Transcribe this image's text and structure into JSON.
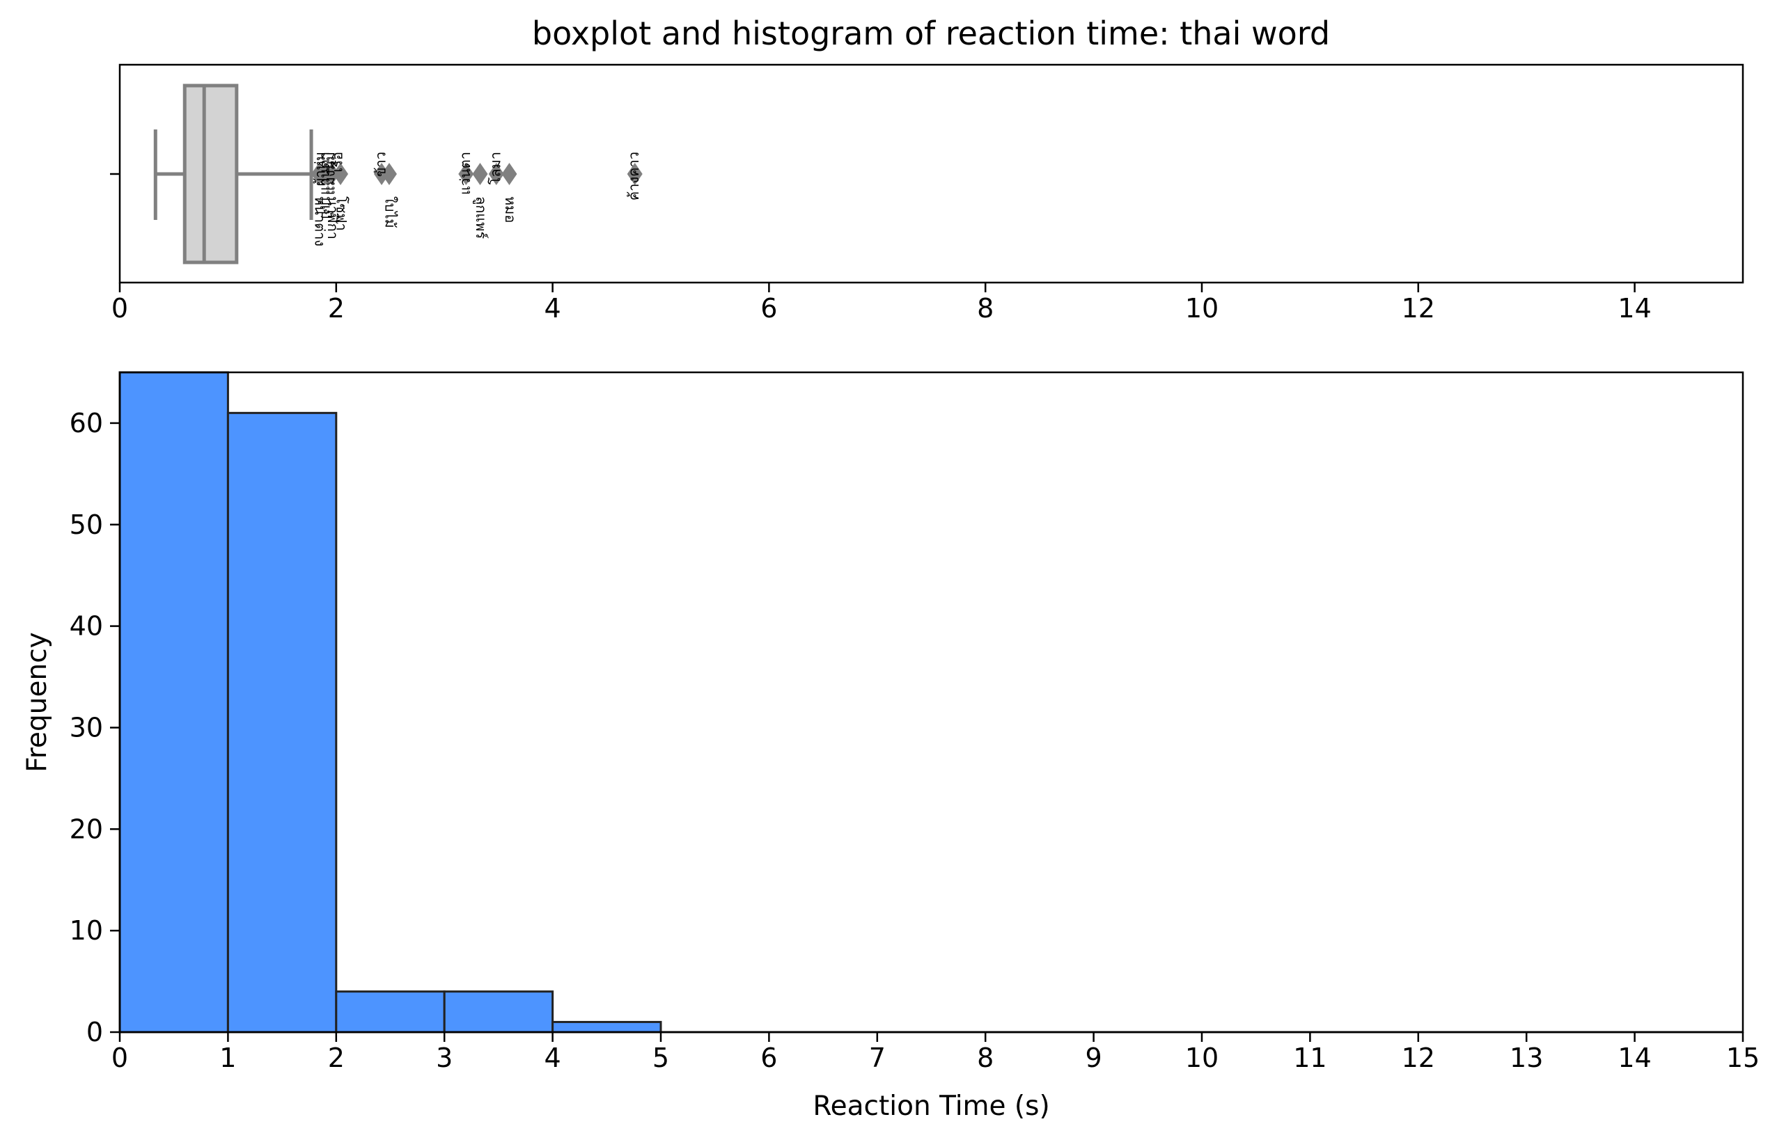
{
  "chart_data": [
    {
      "type": "box",
      "title": "boxplot and histogram of reaction time: thai word",
      "xlim": [
        0,
        15
      ],
      "xticks": [
        "0",
        "2",
        "4",
        "6",
        "8",
        "10",
        "12",
        "14"
      ],
      "box": {
        "whisker_low": 0.33,
        "q1": 0.6,
        "median": 0.78,
        "q3": 1.08,
        "whisker_high": 1.77
      },
      "outliers": [
        1.84,
        1.9,
        1.96,
        2.04,
        2.42,
        2.49,
        3.2,
        3.33,
        3.48,
        3.6,
        4.76
      ],
      "outlier_labels_above": [
        {
          "x": 1.86,
          "text": "ผ้าห่ม"
        },
        {
          "x": 1.9,
          "text": "แว่นตา"
        },
        {
          "x": 1.95,
          "text": "แมงมุม"
        },
        {
          "x": 2.02,
          "text": "เรือ"
        },
        {
          "x": 2.42,
          "text": "ข้าว"
        },
        {
          "x": 3.2,
          "text": "แว่นตา"
        },
        {
          "x": 3.48,
          "text": "โลมา"
        },
        {
          "x": 4.76,
          "text": "ค้างคาว"
        }
      ],
      "outlier_labels_below": [
        {
          "x": 1.84,
          "text": "หน้าต่าง"
        },
        {
          "x": 1.9,
          "text": "ปูเป้"
        },
        {
          "x": 1.96,
          "text": "นาฬิกา"
        },
        {
          "x": 2.04,
          "text": "โซฟา"
        },
        {
          "x": 2.49,
          "text": "ใบไม้"
        },
        {
          "x": 3.33,
          "text": "ลูกแพร์"
        },
        {
          "x": 3.6,
          "text": "หมอ"
        }
      ],
      "color": "#d3d3d3",
      "edge_color": "#808080"
    },
    {
      "type": "bar",
      "bins": [
        [
          0,
          1
        ],
        [
          1,
          2
        ],
        [
          2,
          3
        ],
        [
          3,
          4
        ],
        [
          4,
          5
        ],
        [
          5,
          6
        ],
        [
          6,
          7
        ],
        [
          7,
          8
        ],
        [
          8,
          9
        ],
        [
          9,
          10
        ],
        [
          10,
          11
        ],
        [
          11,
          12
        ],
        [
          12,
          13
        ],
        [
          13,
          14
        ],
        [
          14,
          15
        ]
      ],
      "values": [
        65,
        61,
        4,
        4,
        1,
        0,
        0,
        0,
        0,
        0,
        0,
        0,
        0,
        0,
        0
      ],
      "xlabel": "Reaction Time (s)",
      "ylabel": "Frequency",
      "xlim": [
        0,
        15
      ],
      "ylim": [
        0,
        65
      ],
      "xticks": [
        "0",
        "1",
        "2",
        "3",
        "4",
        "5",
        "6",
        "7",
        "8",
        "9",
        "10",
        "11",
        "12",
        "13",
        "14",
        "15"
      ],
      "yticks": [
        "0",
        "10",
        "20",
        "30",
        "40",
        "50",
        "60"
      ],
      "color": "#4d94ff",
      "edge_color": "#222222",
      "grid": false
    }
  ]
}
